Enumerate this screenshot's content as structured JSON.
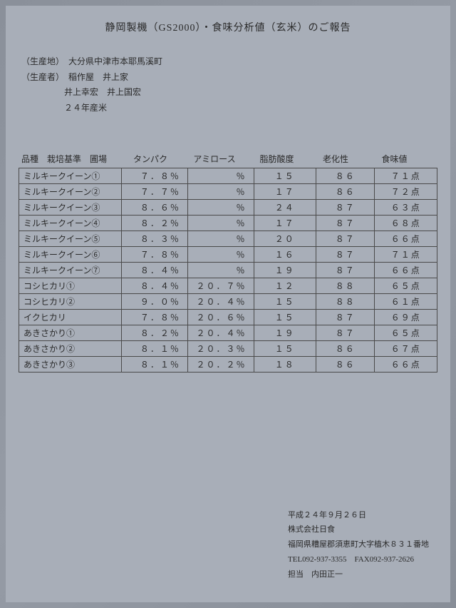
{
  "title": "静岡製機（GS2000）・食味分析値（玄米）のご報告",
  "meta": {
    "origin_label": "（生産地）",
    "origin_value": "大分県中津市本耶馬溪町",
    "producer_label": "（生産者）",
    "producer_value": "稲作屋　井上家",
    "producer_line2": "井上幸宏　井上国宏",
    "year_line": "２４年産米"
  },
  "headers": {
    "variety": "品種　栽培基準　圃場",
    "protein": "タンパク",
    "amylose": "アミロース",
    "fat_acid": "脂肪酸度",
    "aging": "老化性",
    "taste": "食味値"
  },
  "rows": [
    {
      "v": "ミルキークイーン①",
      "p": "７．８％",
      "a": "％",
      "f": "１５",
      "g": "８６",
      "t": "７１点"
    },
    {
      "v": "ミルキークイーン②",
      "p": "７．７％",
      "a": "％",
      "f": "１７",
      "g": "８６",
      "t": "７２点"
    },
    {
      "v": "ミルキークイーン③",
      "p": "８．６％",
      "a": "％",
      "f": "２４",
      "g": "８７",
      "t": "６３点"
    },
    {
      "v": "ミルキークイーン④",
      "p": "８．２％",
      "a": "％",
      "f": "１７",
      "g": "８７",
      "t": "６８点"
    },
    {
      "v": "ミルキークイーン⑤",
      "p": "８．３％",
      "a": "％",
      "f": "２０",
      "g": "８７",
      "t": "６６点"
    },
    {
      "v": "ミルキークイーン⑥",
      "p": "７．８％",
      "a": "％",
      "f": "１６",
      "g": "８７",
      "t": "７１点"
    },
    {
      "v": "ミルキークイーン⑦",
      "p": "８．４％",
      "a": "％",
      "f": "１９",
      "g": "８７",
      "t": "６６点"
    },
    {
      "v": "コシヒカリ①",
      "p": "８．４％",
      "a": "２０．７％",
      "f": "１２",
      "g": "８８",
      "t": "６５点"
    },
    {
      "v": "コシヒカリ②",
      "p": "９．０％",
      "a": "２０．４％",
      "f": "１５",
      "g": "８８",
      "t": "６１点"
    },
    {
      "v": "イクヒカリ",
      "p": "７．８％",
      "a": "２０．６％",
      "f": "１５",
      "g": "８７",
      "t": "６９点"
    },
    {
      "v": "あきさかり①",
      "p": "８．２％",
      "a": "２０．４％",
      "f": "１９",
      "g": "８７",
      "t": "６５点"
    },
    {
      "v": "あきさかり②",
      "p": "８．１％",
      "a": "２０．３％",
      "f": "１５",
      "g": "８６",
      "t": "６７点"
    },
    {
      "v": "あきさかり③",
      "p": "８．１％",
      "a": "２０．２％",
      "f": "１８",
      "g": "８６",
      "t": "６６点"
    }
  ],
  "footer": {
    "date": "平成２４年９月２６日",
    "company": "株式会社日食",
    "address": "福岡県糟屋郡須恵町大字植木８３１番地",
    "contact": "TEL092-937-3355　FAX092-937-2626",
    "person": "担当　内田正一"
  }
}
